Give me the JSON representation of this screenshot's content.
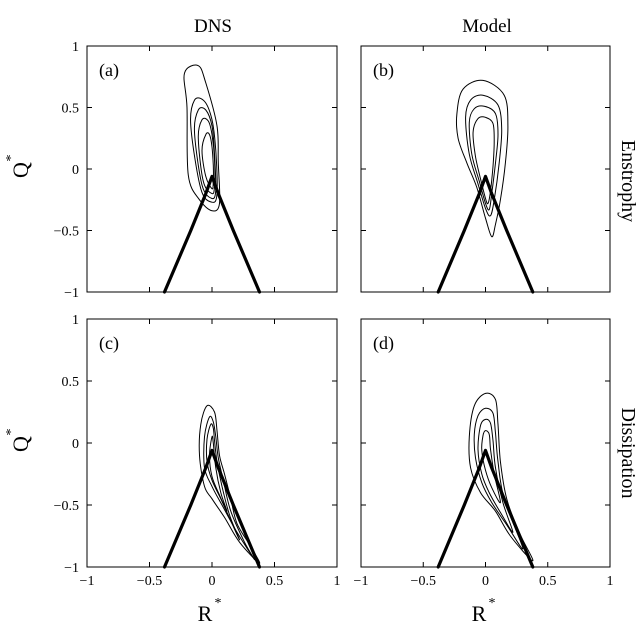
{
  "figure": {
    "column_titles": [
      "DNS",
      "Model"
    ],
    "row_labels": [
      "Enstrophy",
      "Dissipation"
    ],
    "xlabel": "R",
    "ylabel": "Q",
    "label_superscript": "*"
  },
  "chart_data": [
    {
      "type": "contour",
      "panel_label": "(a)",
      "xlim": [
        -1,
        1
      ],
      "ylim": [
        -1,
        1
      ],
      "xticks": [
        "",
        "",
        "",
        "",
        ""
      ],
      "yticks": [
        "1",
        "0.5",
        "0",
        "−0.5",
        "−1"
      ],
      "contours": [
        [
          [
            -0.2,
            0.5
          ],
          [
            -0.22,
            0.78
          ],
          [
            -0.11,
            0.84
          ],
          [
            -0.05,
            0.7
          ],
          [
            0.04,
            0.35
          ],
          [
            0.05,
            0.05
          ],
          [
            0.06,
            -0.28
          ],
          [
            0.0,
            -0.34
          ],
          [
            -0.1,
            -0.25
          ],
          [
            -0.19,
            -0.05
          ],
          [
            -0.2,
            0.5
          ]
        ],
        [
          [
            -0.17,
            0.35
          ],
          [
            -0.14,
            0.56
          ],
          [
            -0.06,
            0.55
          ],
          [
            0.0,
            0.4
          ],
          [
            0.03,
            0.15
          ],
          [
            0.04,
            -0.2
          ],
          [
            0.0,
            -0.27
          ],
          [
            -0.09,
            -0.16
          ],
          [
            -0.17,
            0.35
          ]
        ],
        [
          [
            -0.14,
            0.3
          ],
          [
            -0.11,
            0.48
          ],
          [
            -0.05,
            0.48
          ],
          [
            0.0,
            0.35
          ],
          [
            0.02,
            0.12
          ],
          [
            0.03,
            -0.17
          ],
          [
            0.0,
            -0.24
          ],
          [
            -0.08,
            -0.13
          ],
          [
            -0.14,
            0.3
          ]
        ],
        [
          [
            -0.11,
            0.25
          ],
          [
            -0.08,
            0.4
          ],
          [
            -0.03,
            0.39
          ],
          [
            0.0,
            0.28
          ],
          [
            0.02,
            0.08
          ],
          [
            0.02,
            -0.14
          ],
          [
            0.0,
            -0.2
          ],
          [
            -0.07,
            -0.1
          ],
          [
            -0.11,
            0.25
          ]
        ],
        [
          [
            -0.08,
            0.15
          ],
          [
            -0.05,
            0.28
          ],
          [
            -0.02,
            0.28
          ],
          [
            0.0,
            0.18
          ],
          [
            0.01,
            0.03
          ],
          [
            0.01,
            -0.11
          ],
          [
            0.0,
            -0.16
          ],
          [
            -0.05,
            -0.06
          ],
          [
            -0.08,
            0.15
          ]
        ]
      ],
      "vieillefosse": [
        [
          -0.38,
          -1.0
        ],
        [
          -0.17,
          -0.5
        ],
        [
          -0.05,
          -0.2
        ],
        [
          0.0,
          -0.06
        ],
        [
          0.05,
          -0.2
        ],
        [
          0.17,
          -0.5
        ],
        [
          0.38,
          -1.0
        ]
      ]
    },
    {
      "type": "contour",
      "panel_label": "(b)",
      "xlim": [
        -1,
        1
      ],
      "ylim": [
        -1,
        1
      ],
      "xticks": [
        "",
        "",
        "",
        "",
        ""
      ],
      "yticks": [
        "",
        "",
        "",
        "",
        ""
      ],
      "contours": [
        [
          [
            -0.23,
            0.45
          ],
          [
            -0.18,
            0.65
          ],
          [
            -0.02,
            0.72
          ],
          [
            0.15,
            0.6
          ],
          [
            0.18,
            0.35
          ],
          [
            0.16,
            0.05
          ],
          [
            0.12,
            -0.25
          ],
          [
            0.08,
            -0.45
          ],
          [
            0.05,
            -0.55
          ],
          [
            0.0,
            -0.4
          ],
          [
            -0.07,
            -0.15
          ],
          [
            -0.15,
            0.05
          ],
          [
            -0.22,
            0.25
          ],
          [
            -0.23,
            0.45
          ]
        ],
        [
          [
            -0.16,
            0.42
          ],
          [
            -0.12,
            0.56
          ],
          [
            -0.02,
            0.6
          ],
          [
            0.1,
            0.52
          ],
          [
            0.13,
            0.32
          ],
          [
            0.11,
            0.05
          ],
          [
            0.07,
            -0.25
          ],
          [
            0.04,
            -0.38
          ],
          [
            0.0,
            -0.32
          ],
          [
            -0.06,
            -0.12
          ],
          [
            -0.13,
            0.12
          ],
          [
            -0.16,
            0.42
          ]
        ],
        [
          [
            -0.13,
            0.38
          ],
          [
            -0.09,
            0.49
          ],
          [
            -0.01,
            0.51
          ],
          [
            0.08,
            0.45
          ],
          [
            0.1,
            0.28
          ],
          [
            0.08,
            0.05
          ],
          [
            0.05,
            -0.2
          ],
          [
            0.03,
            -0.33
          ],
          [
            0.0,
            -0.28
          ],
          [
            -0.05,
            -0.1
          ],
          [
            -0.11,
            0.12
          ],
          [
            -0.13,
            0.38
          ]
        ],
        [
          [
            -0.1,
            0.3
          ],
          [
            -0.06,
            0.41
          ],
          [
            0.0,
            0.42
          ],
          [
            0.06,
            0.37
          ],
          [
            0.07,
            0.22
          ],
          [
            0.06,
            0.02
          ],
          [
            0.04,
            -0.18
          ],
          [
            0.02,
            -0.28
          ],
          [
            0.0,
            -0.24
          ],
          [
            -0.04,
            -0.08
          ],
          [
            -0.08,
            0.1
          ],
          [
            -0.1,
            0.3
          ]
        ]
      ],
      "vieillefosse": [
        [
          -0.38,
          -1.0
        ],
        [
          -0.17,
          -0.5
        ],
        [
          -0.05,
          -0.2
        ],
        [
          0.0,
          -0.06
        ],
        [
          0.05,
          -0.2
        ],
        [
          0.17,
          -0.5
        ],
        [
          0.38,
          -1.0
        ]
      ]
    },
    {
      "type": "contour",
      "panel_label": "(c)",
      "xlim": [
        -1,
        1
      ],
      "ylim": [
        -1,
        1
      ],
      "xticks": [
        "−1",
        "−0.5",
        "0",
        "0.5",
        "1"
      ],
      "yticks": [
        "1",
        "0.5",
        "0",
        "−0.5",
        "−1"
      ],
      "contours": [
        [
          [
            -0.04,
            0.3
          ],
          [
            0.02,
            0.25
          ],
          [
            0.04,
            0.1
          ],
          [
            0.06,
            -0.1
          ],
          [
            0.1,
            -0.25
          ],
          [
            0.15,
            -0.45
          ],
          [
            0.2,
            -0.65
          ],
          [
            0.3,
            -0.82
          ],
          [
            0.38,
            -0.97
          ],
          [
            0.22,
            -0.8
          ],
          [
            0.1,
            -0.6
          ],
          [
            0.0,
            -0.45
          ],
          [
            -0.06,
            -0.35
          ],
          [
            -0.1,
            -0.1
          ],
          [
            -0.09,
            0.15
          ],
          [
            -0.04,
            0.3
          ]
        ],
        [
          [
            -0.02,
            0.21
          ],
          [
            0.01,
            0.17
          ],
          [
            0.03,
            0.05
          ],
          [
            0.05,
            -0.12
          ],
          [
            0.09,
            -0.3
          ],
          [
            0.15,
            -0.55
          ],
          [
            0.26,
            -0.8
          ],
          [
            0.34,
            -0.94
          ],
          [
            0.2,
            -0.72
          ],
          [
            0.08,
            -0.5
          ],
          [
            0.0,
            -0.35
          ],
          [
            -0.06,
            -0.2
          ],
          [
            -0.06,
            0.05
          ],
          [
            -0.02,
            0.21
          ]
        ],
        [
          [
            -0.01,
            0.15
          ],
          [
            0.01,
            0.12
          ],
          [
            0.02,
            0.02
          ],
          [
            0.04,
            -0.15
          ],
          [
            0.08,
            -0.35
          ],
          [
            0.14,
            -0.58
          ],
          [
            0.22,
            -0.78
          ],
          [
            0.16,
            -0.65
          ],
          [
            0.07,
            -0.45
          ],
          [
            0.0,
            -0.3
          ],
          [
            -0.04,
            -0.15
          ],
          [
            -0.04,
            0.03
          ],
          [
            -0.01,
            0.15
          ]
        ],
        [
          [
            0.0,
            0.05
          ],
          [
            0.01,
            0.0
          ],
          [
            0.03,
            -0.2
          ],
          [
            0.07,
            -0.4
          ],
          [
            0.12,
            -0.55
          ],
          [
            0.06,
            -0.42
          ],
          [
            0.0,
            -0.27
          ],
          [
            -0.02,
            -0.1
          ],
          [
            0.0,
            0.05
          ]
        ]
      ],
      "vieillefosse": [
        [
          -0.38,
          -1.0
        ],
        [
          -0.17,
          -0.5
        ],
        [
          -0.05,
          -0.2
        ],
        [
          0.0,
          -0.06
        ],
        [
          0.05,
          -0.2
        ],
        [
          0.17,
          -0.5
        ],
        [
          0.38,
          -1.0
        ]
      ]
    },
    {
      "type": "contour",
      "panel_label": "(d)",
      "xlim": [
        -1,
        1
      ],
      "ylim": [
        -1,
        1
      ],
      "xticks": [
        "−1",
        "−0.5",
        "0",
        "0.5",
        "1"
      ],
      "yticks": [
        "",
        "",
        "",
        "",
        ""
      ],
      "contours": [
        [
          [
            -0.09,
            0.3
          ],
          [
            0.0,
            0.4
          ],
          [
            0.08,
            0.35
          ],
          [
            0.1,
            0.15
          ],
          [
            0.12,
            -0.15
          ],
          [
            0.17,
            -0.45
          ],
          [
            0.27,
            -0.72
          ],
          [
            0.38,
            -0.95
          ],
          [
            0.2,
            -0.75
          ],
          [
            0.08,
            -0.55
          ],
          [
            -0.04,
            -0.4
          ],
          [
            -0.12,
            -0.2
          ],
          [
            -0.13,
            0.05
          ],
          [
            -0.09,
            0.3
          ]
        ],
        [
          [
            -0.06,
            0.22
          ],
          [
            0.0,
            0.28
          ],
          [
            0.06,
            0.24
          ],
          [
            0.08,
            0.08
          ],
          [
            0.1,
            -0.15
          ],
          [
            0.15,
            -0.45
          ],
          [
            0.3,
            -0.85
          ],
          [
            0.17,
            -0.66
          ],
          [
            0.05,
            -0.48
          ],
          [
            -0.03,
            -0.32
          ],
          [
            -0.08,
            -0.12
          ],
          [
            -0.09,
            0.07
          ],
          [
            -0.06,
            0.22
          ]
        ],
        [
          [
            -0.04,
            0.14
          ],
          [
            0.0,
            0.19
          ],
          [
            0.04,
            0.16
          ],
          [
            0.06,
            0.02
          ],
          [
            0.08,
            -0.2
          ],
          [
            0.14,
            -0.48
          ],
          [
            0.22,
            -0.72
          ],
          [
            0.12,
            -0.56
          ],
          [
            0.03,
            -0.4
          ],
          [
            -0.03,
            -0.25
          ],
          [
            -0.06,
            -0.05
          ],
          [
            -0.04,
            0.14
          ]
        ],
        [
          [
            -0.02,
            0.06
          ],
          [
            0.0,
            0.1
          ],
          [
            0.03,
            0.07
          ],
          [
            0.04,
            -0.05
          ],
          [
            0.07,
            -0.25
          ],
          [
            0.12,
            -0.48
          ],
          [
            0.05,
            -0.36
          ],
          [
            0.0,
            -0.22
          ],
          [
            -0.03,
            -0.06
          ],
          [
            -0.02,
            0.06
          ]
        ]
      ],
      "vieillefosse": [
        [
          -0.38,
          -1.0
        ],
        [
          -0.17,
          -0.5
        ],
        [
          -0.05,
          -0.2
        ],
        [
          0.0,
          -0.06
        ],
        [
          0.05,
          -0.2
        ],
        [
          0.17,
          -0.5
        ],
        [
          0.38,
          -1.0
        ]
      ]
    }
  ]
}
